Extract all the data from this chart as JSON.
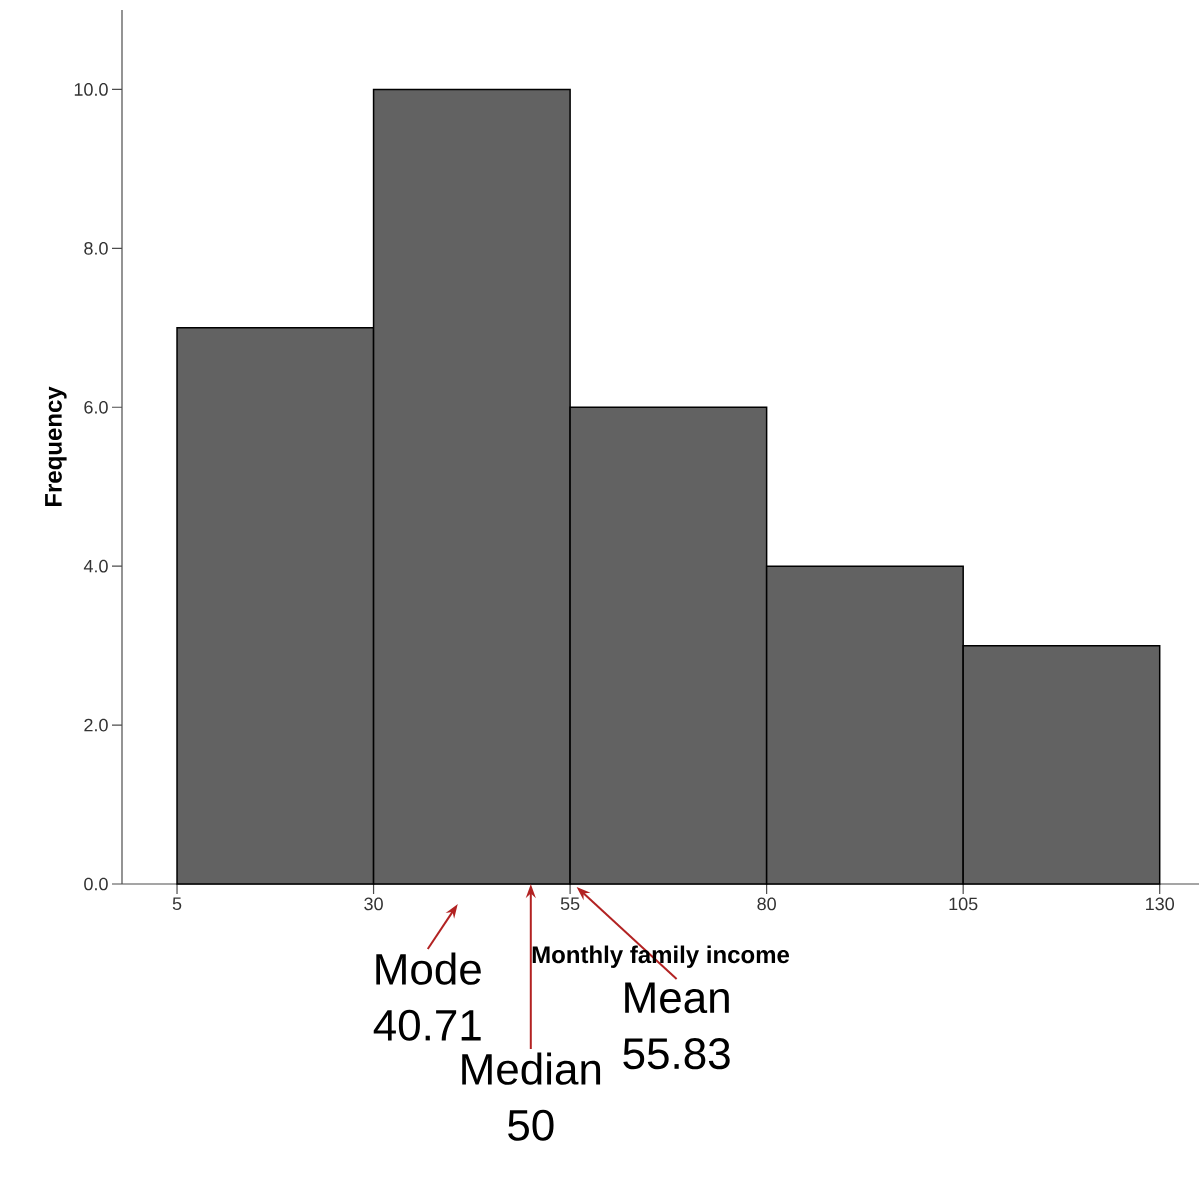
{
  "chart_data": {
    "type": "histogram",
    "xlabel": "Monthly family income",
    "ylabel": "Frequency",
    "bins": [
      5,
      30,
      55,
      80,
      105,
      130
    ],
    "values": [
      7,
      10,
      6,
      4,
      3
    ],
    "color": "#626262",
    "xlim": [
      -2,
      135
    ],
    "ylim": [
      0,
      11
    ],
    "xticks": [
      5,
      30,
      55,
      80,
      105,
      130
    ],
    "yticks": [
      {
        "value": 0,
        "label": "0.0"
      },
      {
        "value": 2,
        "label": "2.0"
      },
      {
        "value": 4,
        "label": "4.0"
      },
      {
        "value": 6,
        "label": "6.0"
      },
      {
        "value": 8,
        "label": "8.0"
      },
      {
        "value": 10,
        "label": "10.0"
      }
    ],
    "grid": false,
    "annotations": [
      {
        "text": "Mode 40.71",
        "x": 40.71,
        "y": 0
      },
      {
        "text": "Median 50",
        "x": 50,
        "y": 0
      },
      {
        "text": "Mean 55.83",
        "x": 55.83,
        "y": 0
      }
    ]
  }
}
